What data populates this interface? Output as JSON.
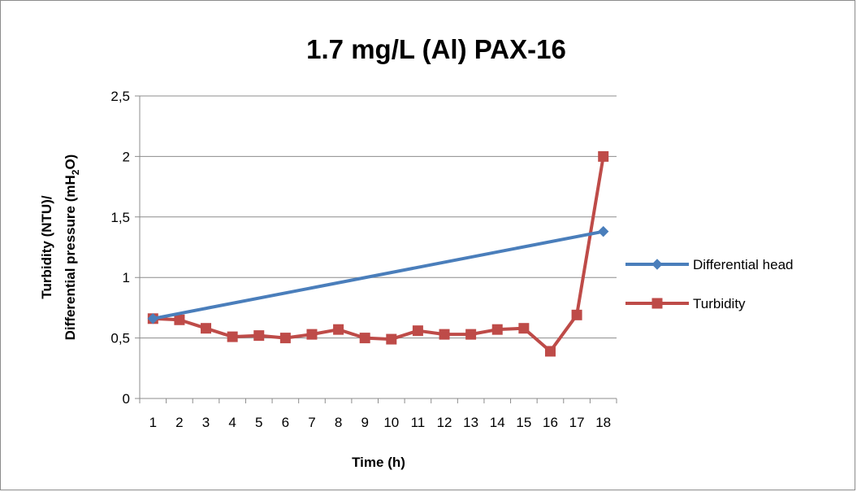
{
  "chart_data": {
    "type": "line",
    "title": "1.7 mg/L (Al) PAX-16",
    "xlabel": "Time (h)",
    "ylabel_line1": "Turbidity (NTU)/",
    "ylabel_line2_prefix": "Differential pressure (mH",
    "ylabel_line2_sub": "2",
    "ylabel_line2_suffix": "O)",
    "categories": [
      "1",
      "2",
      "3",
      "4",
      "5",
      "6",
      "7",
      "8",
      "9",
      "10",
      "11",
      "12",
      "13",
      "14",
      "15",
      "16",
      "17",
      "18"
    ],
    "y_ticks": [
      "0",
      "0,5",
      "1",
      "1,5",
      "2",
      "2,5"
    ],
    "ylim": [
      0,
      2.5
    ],
    "grid": true,
    "legend_position": "right",
    "series": [
      {
        "name": "Differential head",
        "color": "#4a7ebb",
        "marker": "diamond",
        "points": [
          {
            "x": 1,
            "y": 0.66
          },
          {
            "x": 18,
            "y": 1.38
          }
        ]
      },
      {
        "name": "Turbidity",
        "color": "#be4b48",
        "marker": "square",
        "points": [
          {
            "x": 1,
            "y": 0.66
          },
          {
            "x": 2,
            "y": 0.65
          },
          {
            "x": 3,
            "y": 0.58
          },
          {
            "x": 4,
            "y": 0.51
          },
          {
            "x": 5,
            "y": 0.52
          },
          {
            "x": 6,
            "y": 0.5
          },
          {
            "x": 7,
            "y": 0.53
          },
          {
            "x": 8,
            "y": 0.57
          },
          {
            "x": 9,
            "y": 0.5
          },
          {
            "x": 10,
            "y": 0.49
          },
          {
            "x": 11,
            "y": 0.56
          },
          {
            "x": 12,
            "y": 0.53
          },
          {
            "x": 13,
            "y": 0.53
          },
          {
            "x": 14,
            "y": 0.57
          },
          {
            "x": 15,
            "y": 0.58
          },
          {
            "x": 16,
            "y": 0.39
          },
          {
            "x": 17,
            "y": 0.69
          },
          {
            "x": 18,
            "y": 2.0
          }
        ]
      }
    ]
  }
}
